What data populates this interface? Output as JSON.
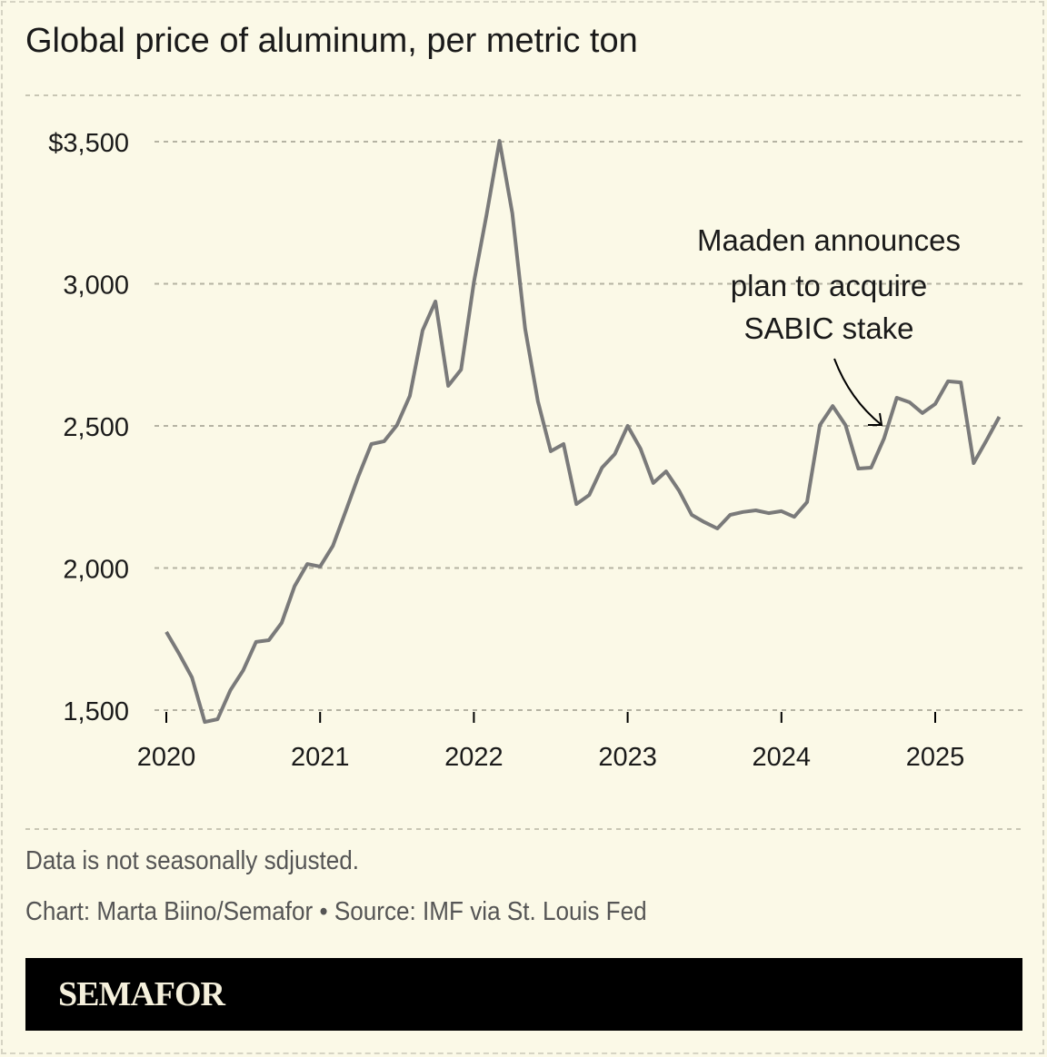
{
  "title": "Global price of aluminum, per metric ton",
  "notes": {
    "line1": "Data is not seasonally sdjusted.",
    "line2": "Chart: Marta Biino/Semafor • Source: IMF via St. Louis Fed"
  },
  "brand": "SEMAFOR",
  "chart_data": {
    "type": "line",
    "title": "Global price of aluminum, per metric ton",
    "xlabel": "",
    "ylabel": "",
    "frequency": "monthly",
    "start": "2020-01",
    "ylim": [
      1500,
      3500
    ],
    "yticks": [
      1500,
      2000,
      2500,
      3000,
      3500
    ],
    "ytick_labels": [
      "1,500",
      "2,000",
      "2,500",
      "3,000",
      "$3,500"
    ],
    "xticks": [
      "2020",
      "2021",
      "2022",
      "2023",
      "2024",
      "2025"
    ],
    "grid": true,
    "line_color": "#7a7a7a",
    "values": [
      1775,
      1698,
      1615,
      1458,
      1468,
      1570,
      1640,
      1740,
      1746,
      1807,
      1935,
      2014,
      2005,
      2078,
      2200,
      2324,
      2436,
      2446,
      2503,
      2605,
      2836,
      2938,
      2641,
      2698,
      3005,
      3245,
      3503,
      3248,
      2842,
      2586,
      2411,
      2436,
      2225,
      2257,
      2353,
      2401,
      2500,
      2420,
      2299,
      2340,
      2273,
      2187,
      2161,
      2139,
      2187,
      2197,
      2203,
      2193,
      2200,
      2180,
      2232,
      2503,
      2570,
      2503,
      2350,
      2353,
      2455,
      2599,
      2583,
      2545,
      2577,
      2657,
      2653,
      2369,
      2449,
      2532
    ],
    "annotation": {
      "lines": [
        "Maaden announces",
        "plan to acquire",
        "SABIC stake"
      ],
      "points_to": "2024-09"
    }
  }
}
